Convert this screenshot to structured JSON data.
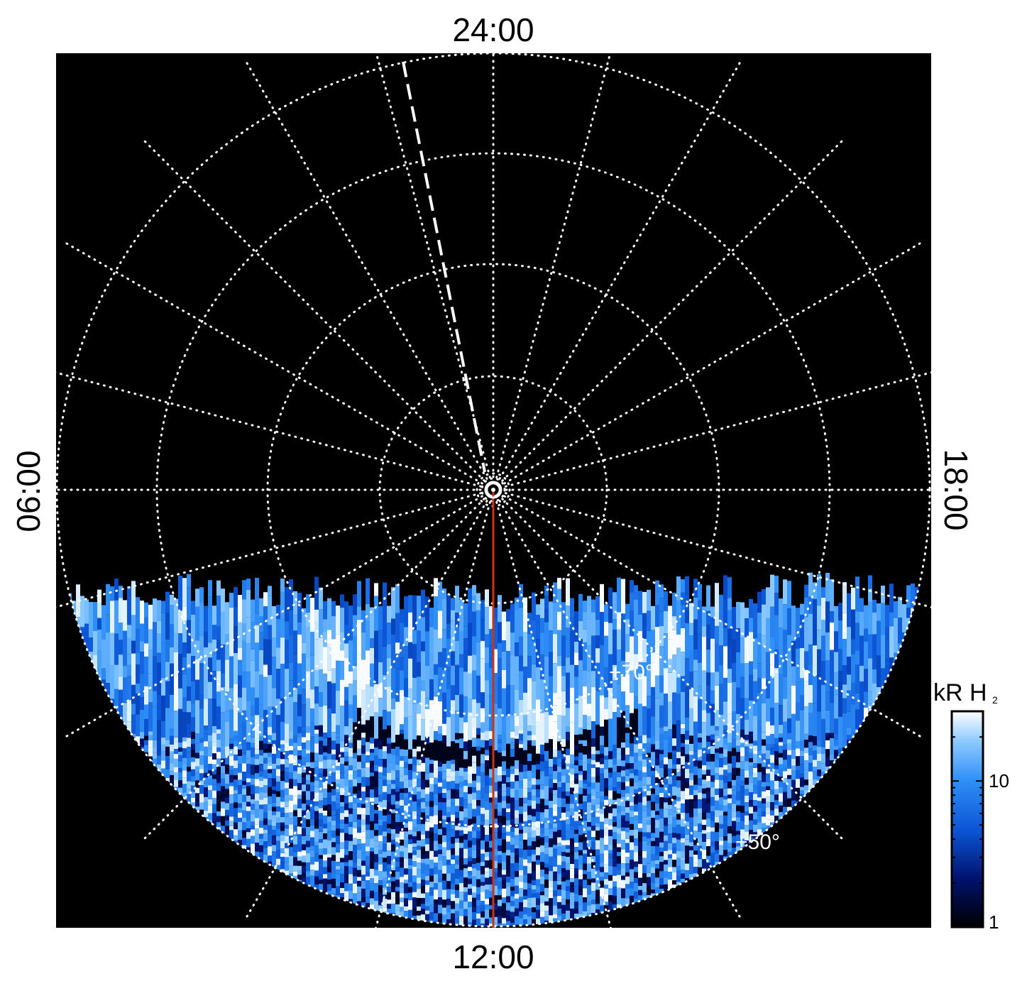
{
  "labels": {
    "top": "24:00",
    "bottom": "12:00",
    "left": "06:00",
    "right": "18:00"
  },
  "latitude_labels": [
    "+70°",
    "+50°"
  ],
  "colorbar": {
    "title_main": "kR H",
    "title_sub": "2",
    "tick_labels": [
      "10",
      "1"
    ],
    "colors": [
      "#000000",
      "#00116b",
      "#0b55d6",
      "#2f8ff7",
      "#8ccaff",
      "#ffffff"
    ]
  },
  "colors": {
    "background": "#000000",
    "grid": "#ffffff",
    "meridian": "#cc3311"
  }
}
